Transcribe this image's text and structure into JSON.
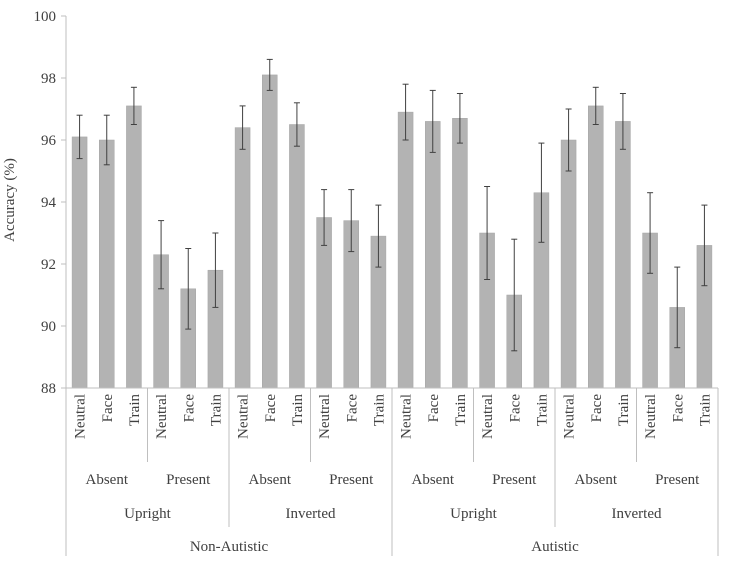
{
  "chart_data": {
    "type": "bar",
    "title": "",
    "ylabel": "Accuracy (%)",
    "xlabel": "",
    "ylim": [
      88,
      100
    ],
    "yticks": [
      88,
      90,
      92,
      94,
      96,
      98,
      100
    ],
    "grid": false,
    "bar_color": "#b3b3b3",
    "bar_edge_color": "#a6a6a6",
    "error_bar_color": "#404040",
    "categories": [
      "Neutral",
      "Face",
      "Train",
      "Neutral",
      "Face",
      "Train",
      "Neutral",
      "Face",
      "Train",
      "Neutral",
      "Face",
      "Train",
      "Neutral",
      "Face",
      "Train",
      "Neutral",
      "Face",
      "Train",
      "Neutral",
      "Face",
      "Train",
      "Neutral",
      "Face",
      "Train"
    ],
    "values": [
      96.1,
      96.0,
      97.1,
      92.3,
      91.2,
      91.8,
      96.4,
      98.1,
      96.5,
      93.5,
      93.4,
      92.9,
      96.9,
      96.6,
      96.7,
      93.0,
      91.0,
      94.3,
      96.0,
      97.1,
      96.6,
      93.0,
      90.6,
      92.6
    ],
    "errors": [
      0.7,
      0.8,
      0.6,
      1.1,
      1.3,
      1.2,
      0.7,
      0.5,
      0.7,
      0.9,
      1.0,
      1.0,
      0.9,
      1.0,
      0.8,
      1.5,
      1.8,
      1.6,
      1.0,
      0.6,
      0.9,
      1.3,
      1.3,
      1.3
    ],
    "group_level_1": [
      "Absent",
      "Present",
      "Absent",
      "Present",
      "Absent",
      "Present",
      "Absent",
      "Present"
    ],
    "group_level_2": [
      "Upright",
      "Inverted",
      "Upright",
      "Inverted"
    ],
    "group_level_3": [
      "Non-Autistic",
      "Autistic"
    ]
  }
}
